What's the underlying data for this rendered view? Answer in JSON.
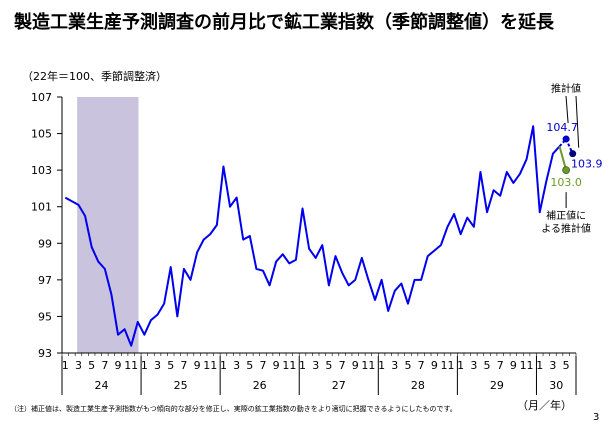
{
  "title": "製造工業生産予測調査の前月比で鉱工業指数（季節調整値）を延長",
  "unit_label": "（22年＝100、季節調整済）",
  "footnote": "（注）補正値は、製造工業生産予測指数がもつ傾向的な部分を修正し、実際の鉱工業指数の動きをより適切に把握できるようにしたものです。",
  "period_label": "（月／年）",
  "page_number": "3",
  "chart_data": {
    "type": "line",
    "ylim": [
      93,
      107
    ],
    "yticks": [
      93,
      95,
      97,
      99,
      101,
      103,
      105,
      107
    ],
    "year_labels": [
      "24",
      "25",
      "26",
      "27",
      "28",
      "29",
      "30"
    ],
    "month_tick_labels": [
      "1",
      "3",
      "5",
      "7",
      "9",
      "11",
      "1",
      "3",
      "5",
      "7",
      "9",
      "11",
      "1",
      "3",
      "5",
      "7",
      "9",
      "11",
      "1",
      "3",
      "5",
      "7",
      "9",
      "11",
      "1",
      "3",
      "5",
      "7",
      "9",
      "11",
      "1",
      "3",
      "5",
      "7",
      "9",
      "11",
      "1",
      "3",
      "5"
    ],
    "recession_shading": {
      "start_index": 2,
      "end_index": 11
    },
    "series": [
      {
        "color": "#0000ee",
        "values": [
          101.5,
          101.3,
          101.1,
          100.5,
          98.8,
          98.0,
          97.6,
          96.2,
          94.0,
          94.3,
          93.4,
          94.7,
          94.0,
          94.8,
          95.1,
          95.7,
          97.7,
          95.0,
          97.6,
          97.0,
          98.5,
          99.2,
          99.5,
          100.0,
          103.2,
          101.0,
          101.5,
          99.2,
          99.4,
          97.6,
          97.5,
          96.7,
          98.0,
          98.4,
          97.9,
          98.1,
          100.9,
          98.7,
          98.2,
          98.9,
          96.7,
          98.3,
          97.4,
          96.7,
          97.0,
          98.2,
          97.0,
          95.9,
          97.0,
          95.3,
          96.4,
          96.8,
          95.7,
          97.0,
          97.0,
          98.3,
          98.6,
          98.9,
          99.9,
          100.6,
          99.5,
          100.4,
          99.9,
          102.9,
          100.7,
          101.9,
          101.6,
          102.9,
          102.3,
          102.8,
          103.6,
          105.4,
          100.7,
          102.4,
          103.9,
          104.3
        ]
      }
    ],
    "forecast": {
      "value_label": "104.7",
      "second_label": "103.9",
      "corrected_label": "103.0",
      "value": 104.7,
      "second": 103.9,
      "corrected": 103.0,
      "forecast_color": "#0000cc",
      "corrected_color": "#6a9a2a"
    },
    "annotations": {
      "estimate": "推計値",
      "corrected_line1": "補正値に",
      "corrected_line2": "よる推計値"
    },
    "shade_color": "#c9c3dd"
  }
}
